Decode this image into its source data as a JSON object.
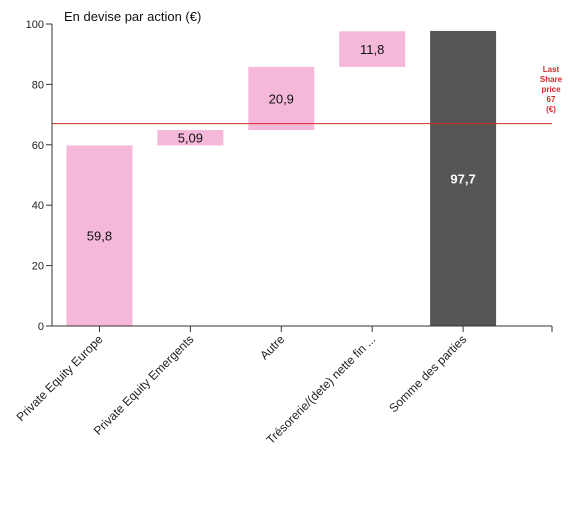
{
  "chart_data": {
    "type": "bar",
    "subtype": "waterfall",
    "ylabel": "En devise par action (€)",
    "ylim": [
      0,
      100
    ],
    "yticks": [
      0,
      20,
      40,
      60,
      80,
      100
    ],
    "grid": false,
    "categories": [
      "Private Equity Europe",
      "Private Equity Emergents",
      "Autre",
      "Trésorerie/(dete) nette fin ...",
      "Somme des parties"
    ],
    "bars": [
      {
        "label": "Private Equity Europe",
        "value": 59.8,
        "base": 0,
        "top": 59.8,
        "display": "59,8",
        "kind": "increment"
      },
      {
        "label": "Private Equity Emergents",
        "value": 5.09,
        "base": 59.8,
        "top": 64.89,
        "display": "5,09",
        "kind": "increment"
      },
      {
        "label": "Autre",
        "value": 20.9,
        "base": 64.89,
        "top": 85.79,
        "display": "20,9",
        "kind": "increment"
      },
      {
        "label": "Trésorerie/(dete) nette fin ...",
        "value": 11.8,
        "base": 85.79,
        "top": 97.59,
        "display": "11,8",
        "kind": "increment"
      },
      {
        "label": "Somme des parties",
        "value": 97.7,
        "base": 0,
        "top": 97.7,
        "display": "97,7",
        "kind": "total"
      }
    ],
    "reference_line": {
      "value": 67,
      "label_lines": [
        "Last",
        "Share",
        "price",
        "67",
        "(€)"
      ]
    },
    "colors": {
      "increment": "#f5b8d9",
      "total": "#555555",
      "reference": "#d42a2a",
      "axis": "#333333"
    }
  }
}
